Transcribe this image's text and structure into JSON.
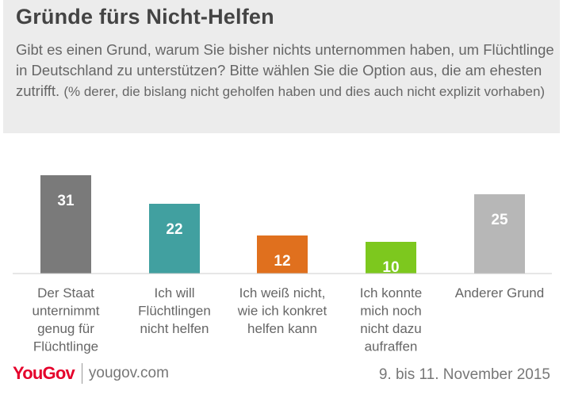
{
  "header": {
    "title": "Gründe fürs Nicht-Helfen",
    "question": "Gibt es einen Grund, warum Sie bisher nichts unternommen haben, um Flüchtlinge in Deutschland zu unterstützen? Bitte wählen Sie die Option aus, die am ehesten zutrifft.",
    "note": "(% derer, die bislang nicht geholfen haben und dies auch nicht explizit vorhaben)"
  },
  "chart_data": {
    "type": "bar",
    "categories": [
      [
        "Der Staat",
        "unternimmt",
        "genug für",
        "Flüchtlinge"
      ],
      [
        "Ich will",
        "Flüchtlingen",
        "nicht helfen"
      ],
      [
        "Ich weiß nicht,",
        "wie ich konkret",
        "helfen kann"
      ],
      [
        "Ich konnte",
        "mich noch",
        "nicht dazu",
        "aufraffen"
      ],
      [
        "Anderer Grund"
      ]
    ],
    "values": [
      31,
      22,
      12,
      10,
      25
    ],
    "colors": [
      "#7a7a7a",
      "#41a0a0",
      "#e0701e",
      "#7dc81e",
      "#b7b7b7"
    ],
    "unit": "%",
    "data_labels": true,
    "grid": false
  },
  "footer": {
    "brand": "YouGov",
    "url": "yougov.com",
    "date": "9. bis 11. November 2015"
  }
}
